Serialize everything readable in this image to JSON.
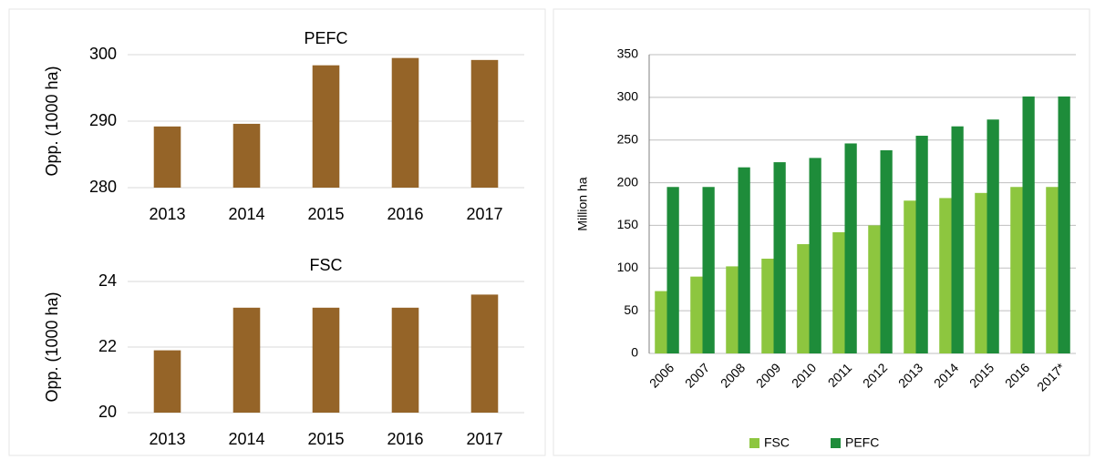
{
  "chart_data": [
    {
      "type": "bar",
      "title": "PEFC",
      "y_label": "Opp. (1000 ha)",
      "categories": [
        "2013",
        "2014",
        "2015",
        "2016",
        "2017"
      ],
      "values": [
        289.2,
        289.6,
        298.4,
        299.5,
        299.2
      ],
      "color": "#956428",
      "ylim": [
        280,
        300
      ],
      "yticks": [
        280,
        290,
        300
      ],
      "grid": true
    },
    {
      "type": "bar",
      "title": "FSC",
      "y_label": "Opp. (1000 ha)",
      "categories": [
        "2013",
        "2014",
        "2015",
        "2016",
        "2017"
      ],
      "values": [
        21.9,
        23.2,
        23.2,
        23.2,
        23.6
      ],
      "color": "#956428",
      "ylim": [
        20,
        24
      ],
      "yticks": [
        20,
        22,
        24
      ],
      "grid": true
    },
    {
      "type": "grouped_bar",
      "y_label": "Million ha",
      "categories": [
        "2006",
        "2007",
        "2008",
        "2009",
        "2010",
        "2011",
        "2012",
        "2013",
        "2014",
        "2015",
        "2016",
        "2017*"
      ],
      "series": [
        {
          "name": "FSC",
          "color": "#8dc63f",
          "values": [
            73,
            90,
            102,
            111,
            128,
            142,
            150,
            179,
            182,
            188,
            195,
            195
          ]
        },
        {
          "name": "PEFC",
          "color": "#1e8c3a",
          "values": [
            195,
            195,
            218,
            224,
            229,
            246,
            238,
            255,
            266,
            274,
            301,
            301
          ]
        }
      ],
      "ylim": [
        0,
        350
      ],
      "yticks": [
        0,
        50,
        100,
        150,
        200,
        250,
        300,
        350
      ],
      "grid": true,
      "legend": "bottom"
    }
  ]
}
